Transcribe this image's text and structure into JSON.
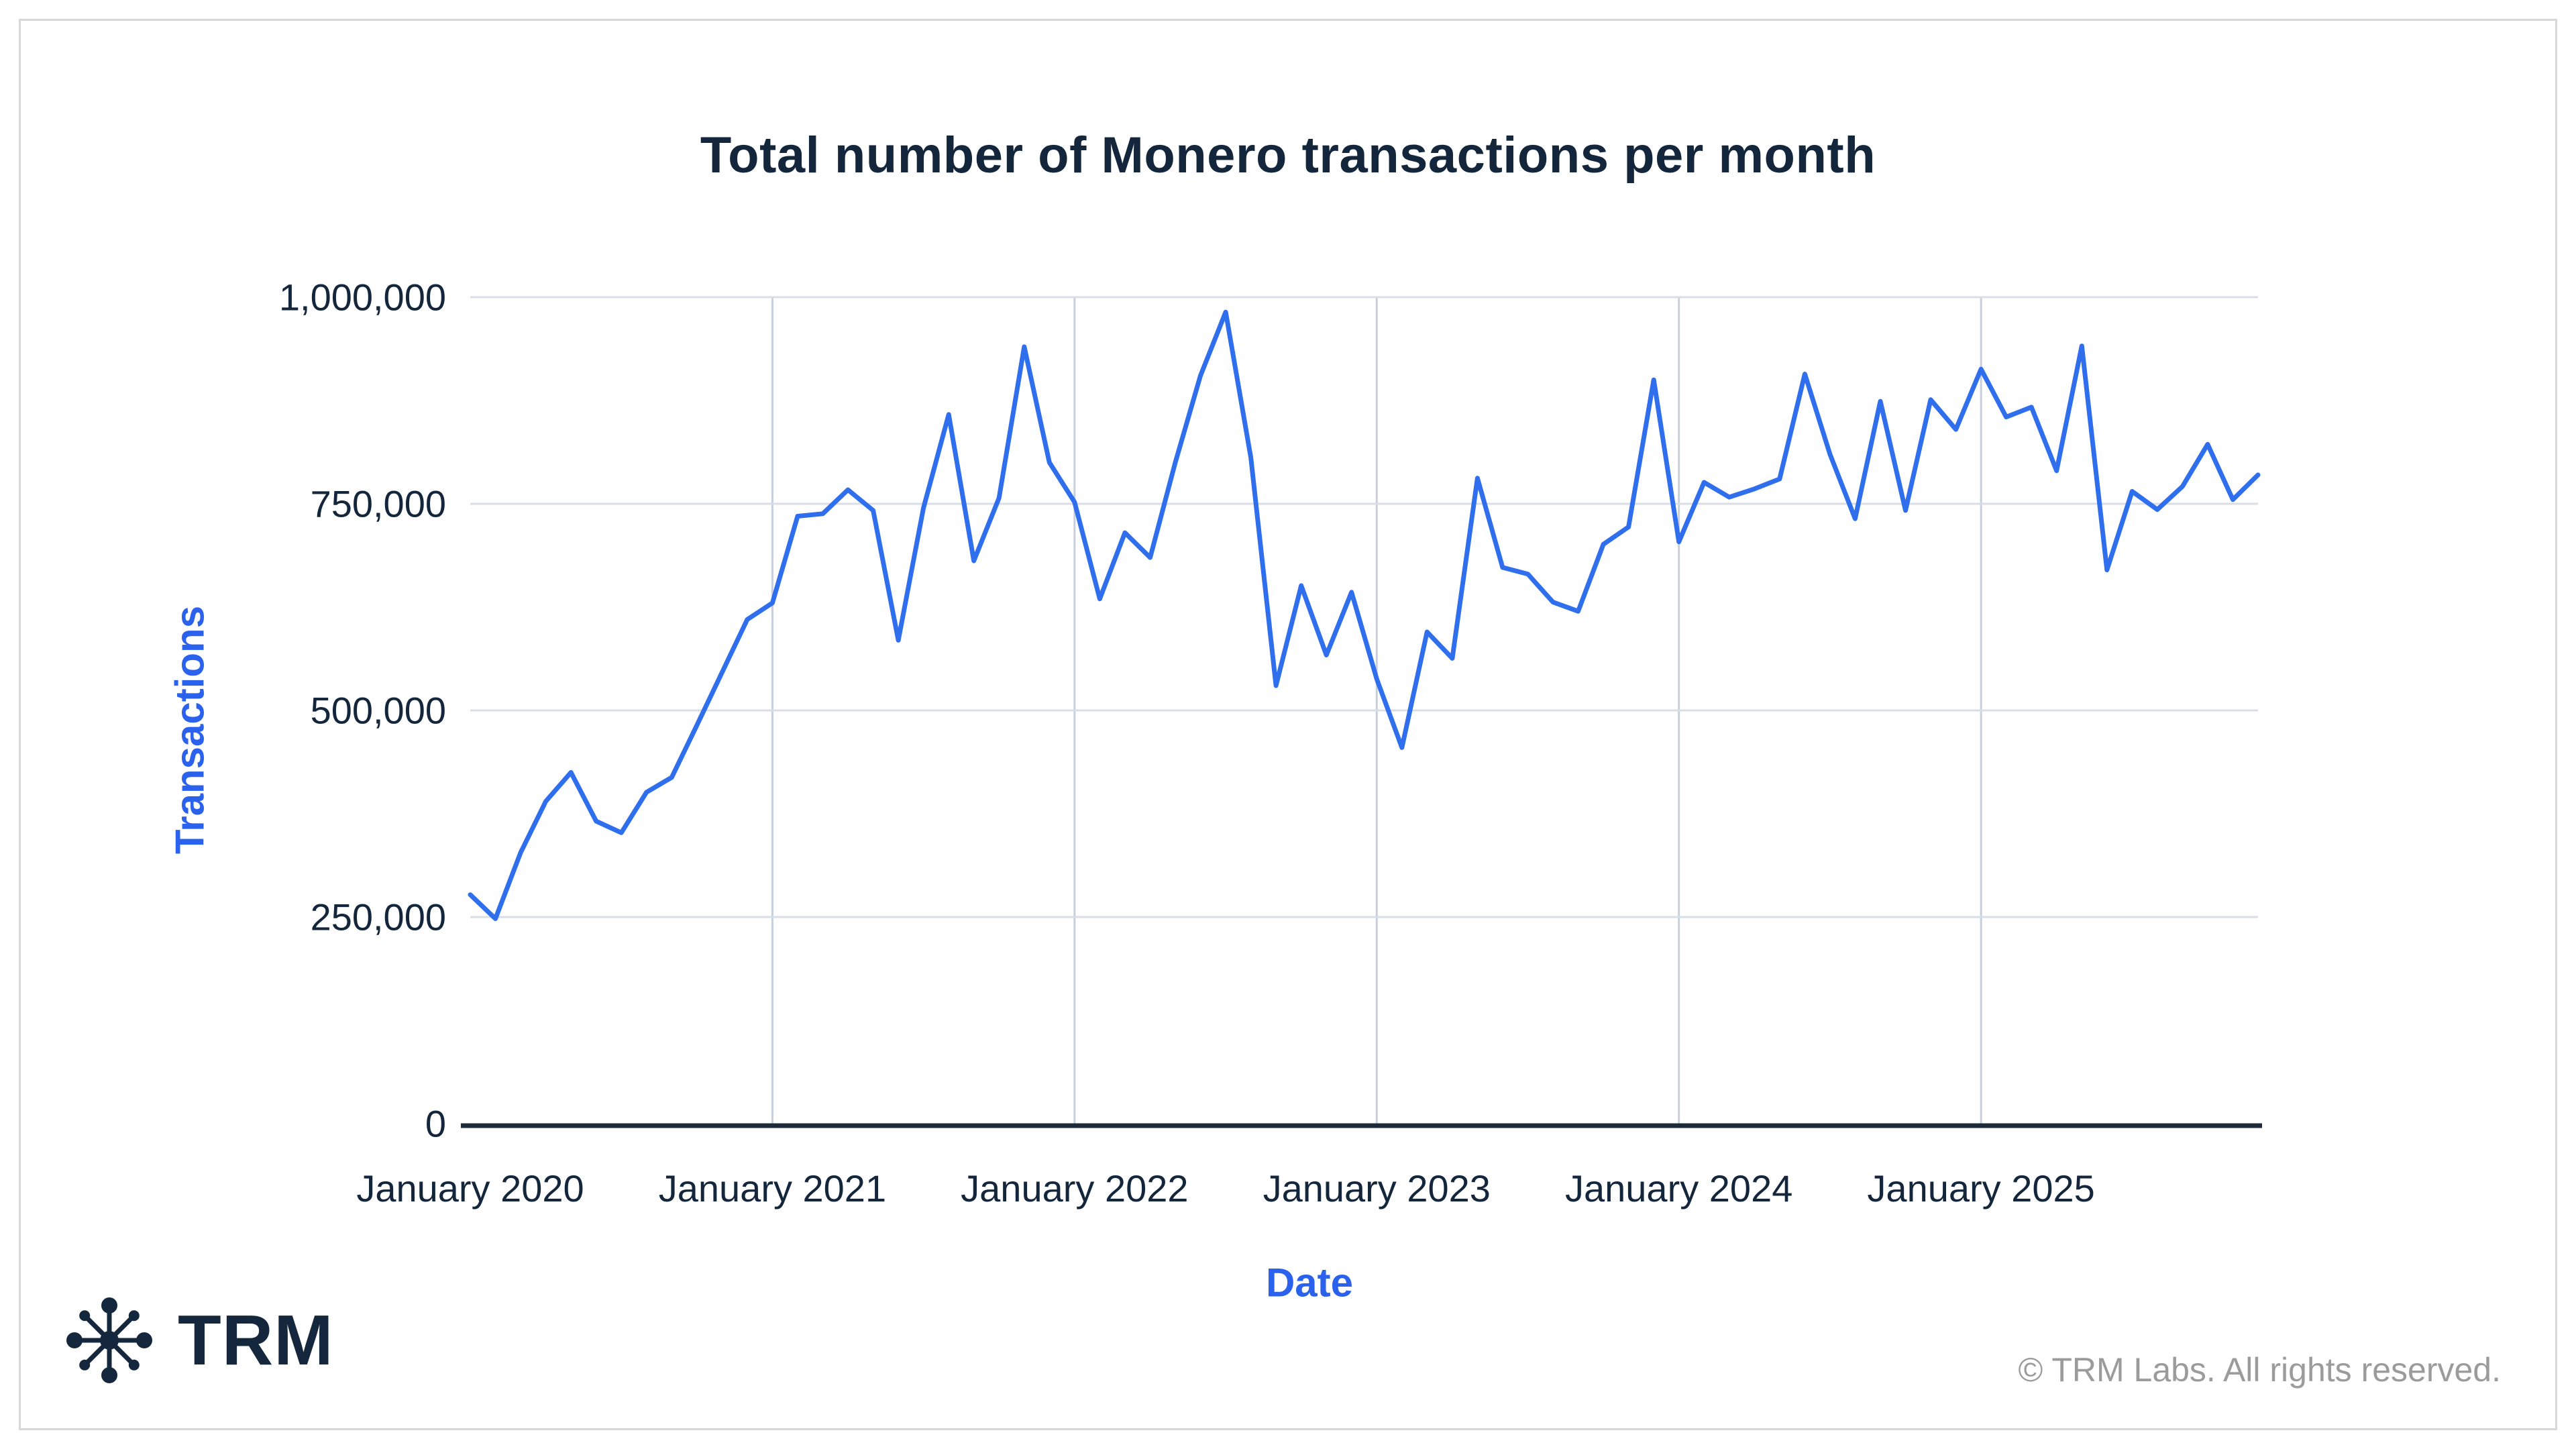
{
  "title": "Total number of Monero transactions per month",
  "y_axis": {
    "title": "Transactions",
    "tick_labels": [
      "0",
      "250,000",
      "500,000",
      "750,000",
      "1,000,000"
    ]
  },
  "x_axis": {
    "title": "Date",
    "tick_labels": [
      "January 2020",
      "January 2021",
      "January 2022",
      "January 2023",
      "January 2024",
      "January 2025"
    ]
  },
  "footer": {
    "logo_text": "TRM",
    "copyright": "© TRM Labs. All rights reserved."
  },
  "colors": {
    "line": "#2f6eec",
    "accent_blue": "#2a62ee",
    "dark_navy": "#13263b",
    "grid_horizontal": "#d9dde6",
    "grid_vertical": "#c8cedb",
    "axis_line": "#1c2a3a",
    "copyright_gray": "#9b9b9b",
    "border_gray": "#d8d8d8"
  },
  "chart_data": {
    "type": "line",
    "title": "Total number of Monero transactions per month",
    "xlabel": "Date",
    "ylabel": "Transactions",
    "ylim": [
      0,
      1000000
    ],
    "grid": true,
    "legend": false,
    "y_tick_values": [
      0,
      250000,
      500000,
      750000,
      1000000
    ],
    "y_tick_labels": [
      "0",
      "250,000",
      "500,000",
      "750,000",
      "1,000,000"
    ],
    "x_tick_positions": [
      0,
      12,
      24,
      36,
      48,
      60
    ],
    "x_tick_labels": [
      "January 2020",
      "January 2021",
      "January 2022",
      "January 2023",
      "January 2024",
      "January 2025"
    ],
    "months": [
      "2020-01",
      "2020-02",
      "2020-03",
      "2020-04",
      "2020-05",
      "2020-06",
      "2020-07",
      "2020-08",
      "2020-09",
      "2020-10",
      "2020-11",
      "2020-12",
      "2021-01",
      "2021-02",
      "2021-03",
      "2021-04",
      "2021-05",
      "2021-06",
      "2021-07",
      "2021-08",
      "2021-09",
      "2021-10",
      "2021-11",
      "2021-12",
      "2022-01",
      "2022-02",
      "2022-03",
      "2022-04",
      "2022-05",
      "2022-06",
      "2022-07",
      "2022-08",
      "2022-09",
      "2022-10",
      "2022-11",
      "2022-12",
      "2023-01",
      "2023-02",
      "2023-03",
      "2023-04",
      "2023-05",
      "2023-06",
      "2023-07",
      "2023-08",
      "2023-09",
      "2023-10",
      "2023-11",
      "2023-12",
      "2024-01",
      "2024-02",
      "2024-03",
      "2024-04",
      "2024-05",
      "2024-06",
      "2024-07",
      "2024-08",
      "2024-09",
      "2024-10",
      "2024-11",
      "2024-12",
      "2025-01",
      "2025-02",
      "2025-03",
      "2025-04",
      "2025-05",
      "2025-06",
      "2025-07",
      "2025-08",
      "2025-09",
      "2025-10",
      "2025-11",
      "2025-12"
    ],
    "values": [
      277000,
      248000,
      328000,
      390000,
      425000,
      366000,
      352000,
      401000,
      419000,
      482000,
      546000,
      610000,
      630000,
      735000,
      738000,
      767000,
      742000,
      585000,
      745000,
      858000,
      681000,
      757000,
      940000,
      800000,
      752000,
      635000,
      715000,
      685000,
      800000,
      905000,
      982000,
      806000,
      530000,
      651000,
      567000,
      643000,
      538000,
      455000,
      595000,
      563000,
      781000,
      673000,
      665000,
      631000,
      620000,
      701000,
      722000,
      900000,
      704000,
      776000,
      758000,
      768000,
      780000,
      907000,
      810000,
      732000,
      874000,
      742000,
      876000,
      840000,
      913000,
      855000,
      867000,
      790000,
      941000,
      670000,
      765000,
      743000,
      771000,
      822000,
      755000,
      785000
    ]
  }
}
